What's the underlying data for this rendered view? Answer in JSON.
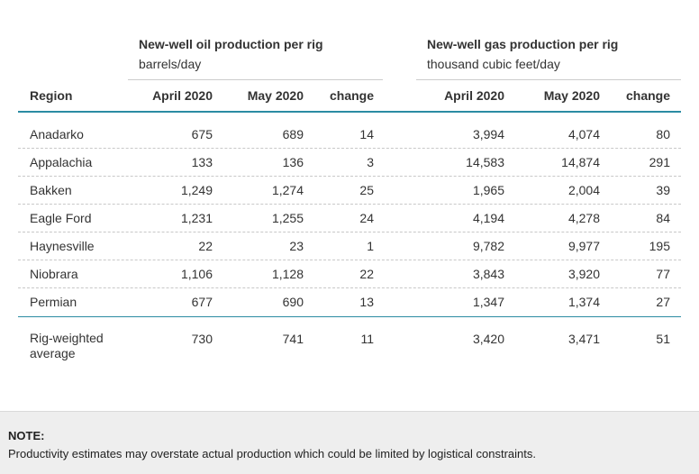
{
  "groups": {
    "oil": {
      "title": "New-well oil production per rig",
      "unit": "barrels/day"
    },
    "gas": {
      "title": "New-well gas production per rig",
      "unit": "thousand cubic feet/day"
    }
  },
  "columns": {
    "region": "Region",
    "oil_april": "April 2020",
    "oil_may": "May 2020",
    "oil_change": "change",
    "gas_april": "April 2020",
    "gas_may": "May 2020",
    "gas_change": "change"
  },
  "rows": [
    {
      "region": "Anadarko",
      "oil_april": "675",
      "oil_may": "689",
      "oil_change": "14",
      "gas_april": "3,994",
      "gas_may": "4,074",
      "gas_change": "80"
    },
    {
      "region": "Appalachia",
      "oil_april": "133",
      "oil_may": "136",
      "oil_change": "3",
      "gas_april": "14,583",
      "gas_may": "14,874",
      "gas_change": "291"
    },
    {
      "region": "Bakken",
      "oil_april": "1,249",
      "oil_may": "1,274",
      "oil_change": "25",
      "gas_april": "1,965",
      "gas_may": "2,004",
      "gas_change": "39"
    },
    {
      "region": "Eagle Ford",
      "oil_april": "1,231",
      "oil_may": "1,255",
      "oil_change": "24",
      "gas_april": "4,194",
      "gas_may": "4,278",
      "gas_change": "84"
    },
    {
      "region": "Haynesville",
      "oil_april": "22",
      "oil_may": "23",
      "oil_change": "1",
      "gas_april": "9,782",
      "gas_may": "9,977",
      "gas_change": "195"
    },
    {
      "region": "Niobrara",
      "oil_april": "1,106",
      "oil_may": "1,128",
      "oil_change": "22",
      "gas_april": "3,843",
      "gas_may": "3,920",
      "gas_change": "77"
    },
    {
      "region": "Permian",
      "oil_april": "677",
      "oil_may": "690",
      "oil_change": "13",
      "gas_april": "1,347",
      "gas_may": "1,374",
      "gas_change": "27"
    }
  ],
  "average": {
    "region_line1": "Rig-weighted",
    "region_line2": "average",
    "oil_april": "730",
    "oil_may": "741",
    "oil_change": "11",
    "gas_april": "3,420",
    "gas_may": "3,471",
    "gas_change": "51"
  },
  "note": {
    "label": "NOTE:",
    "text": "Productivity estimates may overstate actual production which could be limited by logistical constraints."
  },
  "colors": {
    "header_rule": "#2b8ca3",
    "footer_bg": "#eeeeee"
  }
}
